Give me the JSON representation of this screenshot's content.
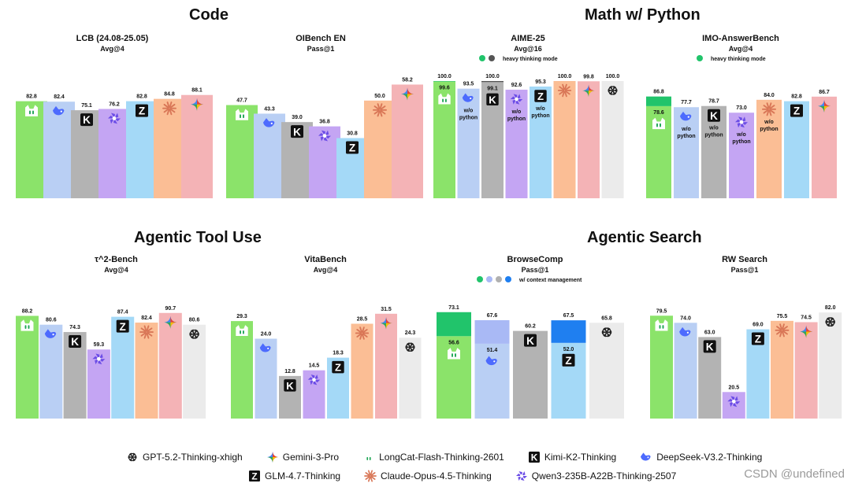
{
  "sections": [
    {
      "title": "Code"
    },
    {
      "title": "Math w/ Python"
    },
    {
      "title": "Agentic Tool Use"
    },
    {
      "title": "Agentic Search"
    }
  ],
  "models": {
    "longcat": {
      "name": "LongCat-Flash-Thinking-2601",
      "color": "#8be36a",
      "icon": "longcat-icon"
    },
    "deepseek": {
      "name": "DeepSeek-V3.2-Thinking",
      "color": "#b9cff4",
      "icon": "deepseek-whale-icon"
    },
    "kimi": {
      "name": "Kimi-K2-Thinking",
      "color": "#b3b3b3",
      "icon": "kimi-k-icon"
    },
    "qwen": {
      "name": "Qwen3-235B-A22B-Thinking-2507",
      "color": "#c4a5f3",
      "icon": "qwen-icon"
    },
    "glm": {
      "name": "GLM-4.7-Thinking",
      "color": "#a4d9f7",
      "icon": "glm-z-icon"
    },
    "claude": {
      "name": "Claude-Opus-4.5-Thinking",
      "color": "#fbbe95",
      "icon": "claude-burst-icon"
    },
    "gemini": {
      "name": "Gemini-3-Pro",
      "color": "#f4b3b6",
      "icon": "gemini-star-icon"
    },
    "gpt": {
      "name": "GPT-5.2-Thinking-xhigh",
      "color": "#ebebeb",
      "icon": "openai-knot-icon"
    }
  },
  "chart_data": [
    {
      "type": "bar",
      "title": "LCB (24.08-25.05)",
      "subtitle": "Avg@4",
      "ylim": [
        0,
        100
      ],
      "bars": [
        {
          "model": "longcat",
          "value": 82.8
        },
        {
          "model": "deepseek",
          "value": 82.4
        },
        {
          "model": "kimi",
          "value": 75.1
        },
        {
          "model": "qwen",
          "value": 76.2
        },
        {
          "model": "glm",
          "value": 82.8
        },
        {
          "model": "claude",
          "value": 84.8
        },
        {
          "model": "gemini",
          "value": 88.1
        }
      ]
    },
    {
      "type": "bar",
      "title": "OIBench EN",
      "subtitle": "Pass@1",
      "ylim": [
        0,
        60
      ],
      "bars": [
        {
          "model": "longcat",
          "value": 47.7
        },
        {
          "model": "deepseek",
          "value": 43.3
        },
        {
          "model": "kimi",
          "value": 39.0
        },
        {
          "model": "qwen",
          "value": 36.8
        },
        {
          "model": "glm",
          "value": 30.8
        },
        {
          "model": "claude",
          "value": 50.0
        },
        {
          "model": "gemini",
          "value": 58.2
        }
      ]
    },
    {
      "type": "bar",
      "title": "AIME-25",
      "subtitle": "Avg@16",
      "ylim": [
        0,
        100
      ],
      "legend_label": "heavy thinking mode",
      "legend_colors": [
        "#21c46b",
        "#555555"
      ],
      "bars": [
        {
          "model": "longcat",
          "value": 99.6,
          "heavy_value": 100.0,
          "heavy_color": "#21c46b"
        },
        {
          "model": "deepseek",
          "value": 93.5,
          "note": "w/o python"
        },
        {
          "model": "kimi",
          "value": 99.1,
          "heavy_value": 100.0,
          "heavy_color": "#555555"
        },
        {
          "model": "qwen",
          "value": 92.6,
          "note": "w/o python"
        },
        {
          "model": "glm",
          "value": 95.3,
          "note": "w/o python"
        },
        {
          "model": "claude",
          "value": 100.0
        },
        {
          "model": "gemini",
          "value": 99.8
        },
        {
          "model": "gpt",
          "value": 100.0
        }
      ]
    },
    {
      "type": "bar",
      "title": "IMO-AnswerBench",
      "subtitle": "Avg@4",
      "ylim": [
        0,
        100
      ],
      "legend_label": "heavy thinking mode",
      "legend_colors": [
        "#21c46b"
      ],
      "bars": [
        {
          "model": "longcat",
          "value": 78.6,
          "heavy_value": 86.8,
          "heavy_color": "#21c46b"
        },
        {
          "model": "deepseek",
          "value": 77.7,
          "note": "w/o python"
        },
        {
          "model": "kimi",
          "value": 78.7,
          "note": "w/o python"
        },
        {
          "model": "qwen",
          "value": 73.0,
          "note": "w/o python"
        },
        {
          "model": "claude",
          "value": 84.0,
          "note": "w/o python"
        },
        {
          "model": "glm",
          "value": 82.8
        },
        {
          "model": "gemini",
          "value": 86.7
        }
      ]
    },
    {
      "type": "bar",
      "title": "τ^2-Bench",
      "subtitle": "Avg@4",
      "ylim": [
        0,
        100
      ],
      "bars": [
        {
          "model": "longcat",
          "value": 88.2
        },
        {
          "model": "deepseek",
          "value": 80.6
        },
        {
          "model": "kimi",
          "value": 74.3
        },
        {
          "model": "qwen",
          "value": 59.3
        },
        {
          "model": "glm",
          "value": 87.4
        },
        {
          "model": "claude",
          "value": 82.4
        },
        {
          "model": "gemini",
          "value": 90.7
        },
        {
          "model": "gpt",
          "value": 80.6
        }
      ]
    },
    {
      "type": "bar",
      "title": "VitaBench",
      "subtitle": "Avg@4",
      "ylim": [
        0,
        35
      ],
      "bars": [
        {
          "model": "longcat",
          "value": 29.3
        },
        {
          "model": "deepseek",
          "value": 24.0
        },
        {
          "model": "kimi",
          "value": 12.8
        },
        {
          "model": "qwen",
          "value": 14.5
        },
        {
          "model": "glm",
          "value": 18.3
        },
        {
          "model": "claude",
          "value": 28.5
        },
        {
          "model": "gemini",
          "value": 31.5
        },
        {
          "model": "gpt",
          "value": 24.3
        }
      ]
    },
    {
      "type": "bar",
      "title": "BrowseComp",
      "subtitle": "Pass@1",
      "ylim": [
        0,
        80
      ],
      "legend_label": "w/ context management",
      "legend_colors": [
        "#21c46b",
        "#a9b9f5",
        "#b0b0b0",
        "#1f7ff0"
      ],
      "bars": [
        {
          "model": "longcat",
          "value": 56.6,
          "heavy_value": 73.1,
          "heavy_color": "#21c46b"
        },
        {
          "model": "deepseek",
          "value": 51.4,
          "heavy_value": 67.6,
          "heavy_color": "#a9b9f5"
        },
        {
          "model": "kimi",
          "value": 60.2
        },
        {
          "model": "glm",
          "value": 52.0,
          "heavy_value": 67.5,
          "heavy_color": "#1f7ff0"
        },
        {
          "model": "gpt",
          "value": 65.8
        }
      ]
    },
    {
      "type": "bar",
      "title": "RW Search",
      "subtitle": "Pass@1",
      "ylim": [
        0,
        90
      ],
      "bars": [
        {
          "model": "longcat",
          "value": 79.5
        },
        {
          "model": "deepseek",
          "value": 74.0
        },
        {
          "model": "kimi",
          "value": 63.0
        },
        {
          "model": "qwen",
          "value": 20.5
        },
        {
          "model": "glm",
          "value": 69.0
        },
        {
          "model": "claude",
          "value": 75.5
        },
        {
          "model": "gemini",
          "value": 74.5
        },
        {
          "model": "gpt",
          "value": 82.0
        }
      ]
    }
  ],
  "legend": {
    "row1": [
      "gpt",
      "gemini",
      "longcat",
      "kimi",
      "deepseek"
    ],
    "row2": [
      "glm",
      "claude",
      "qwen"
    ]
  },
  "watermark": "CSDN @undefined"
}
